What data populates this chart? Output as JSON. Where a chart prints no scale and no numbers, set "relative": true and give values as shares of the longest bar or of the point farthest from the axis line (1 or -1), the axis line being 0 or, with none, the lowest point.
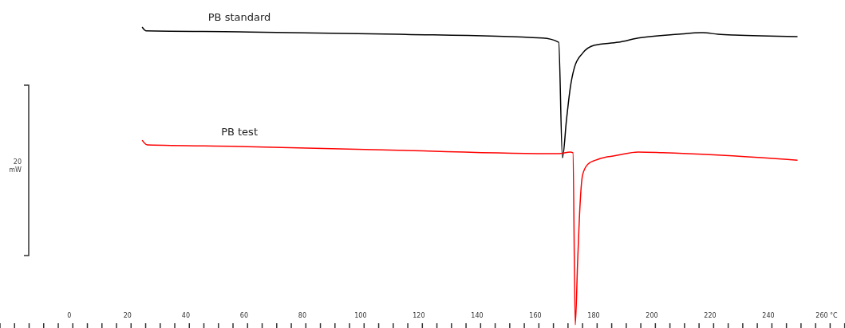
{
  "chart_data": {
    "type": "line",
    "relative": true,
    "legend": false,
    "line_style": "solid",
    "tick_labels": "x",
    "xlim": [
      -23.8,
      266.3
    ],
    "xticks": [
      0,
      20,
      40,
      60,
      80,
      100,
      120,
      140,
      160,
      180,
      200,
      220,
      240,
      {
        "value": 260,
        "label": "260 °C"
      }
    ],
    "annotations": [
      "20 mW"
    ],
    "series": [
      {
        "name": "PB standard",
        "color": "#000000",
        "x": [
          25,
          26.4,
          58.4,
          113,
          162.5,
          168,
          169.3,
          170.7,
          172,
          173.4,
          176.2,
          180.3,
          188.5,
          195.3,
          209,
          217.3,
          222.7,
          228.2,
          250
        ],
        "values": [
          1.0,
          0.987,
          0.984,
          0.976,
          0.963,
          0.949,
          0.561,
          0.69,
          0.797,
          0.864,
          0.912,
          0.939,
          0.949,
          0.963,
          0.976,
          0.981,
          0.976,
          0.973,
          0.968
        ]
      },
      {
        "name": "PB test",
        "color": "#ff0000",
        "x": [
          25,
          26.8,
          58.4,
          113,
          168,
          172,
          172.9,
          173.7,
          174.5,
          175.3,
          176.2,
          178.1,
          181.6,
          188.5,
          195.3,
          203.6,
          222.7,
          250
        ],
        "values": [
          0.62,
          0.604,
          0.599,
          0.586,
          0.575,
          0.58,
          0.578,
          0,
          0.209,
          0.396,
          0.503,
          0.54,
          0.556,
          0.57,
          0.58,
          0.578,
          0.57,
          0.553
        ]
      }
    ]
  }
}
